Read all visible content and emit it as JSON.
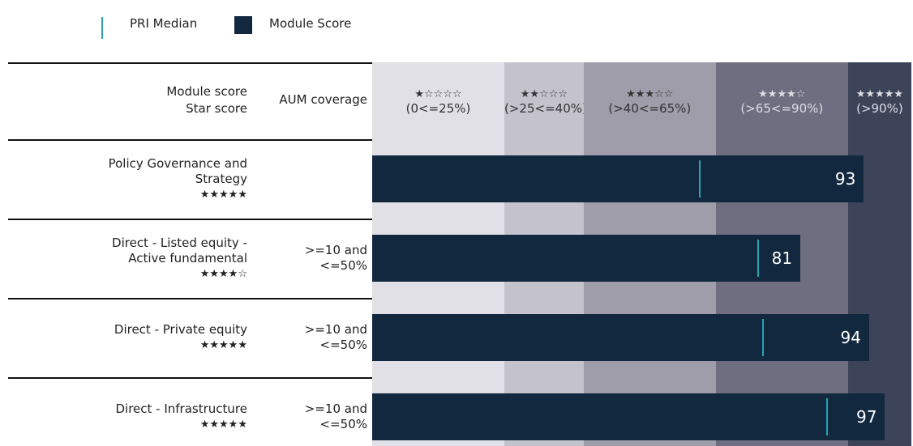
{
  "chart_data": {
    "type": "bar",
    "orientation": "horizontal",
    "xlim": [
      0,
      102
    ],
    "header": {
      "score_label": [
        "Module score",
        "Star score"
      ],
      "coverage_label": "AUM coverage"
    },
    "bands": [
      {
        "stars": "★☆☆☆☆",
        "label": "(0<=25%)",
        "from": 0,
        "to": 25,
        "color": "#e1e0e6",
        "text_color": "#333333"
      },
      {
        "stars": "★★☆☆☆",
        "label": "(>25<=40%)",
        "from": 25,
        "to": 40,
        "color": "#c4c3cb",
        "text_color": "#333333"
      },
      {
        "stars": "★★★☆☆",
        "label": "(>40<=65%)",
        "from": 40,
        "to": 65,
        "color": "#9e9da9",
        "text_color": "#333333"
      },
      {
        "stars": "★★★★☆",
        "label": "(>65<=90%)",
        "from": 65,
        "to": 90,
        "color": "#6f6e80",
        "text_color": "#dddde3"
      },
      {
        "stars": "★★★★★",
        "label": "(>90%)",
        "from": 90,
        "to": 102,
        "color": "#3d4459",
        "text_color": "#dddde3"
      }
    ],
    "categories": [
      "Policy Governance and Strategy",
      "Direct - Listed equity - Active fundamental",
      "Direct - Private equity",
      "Direct - Infrastructure"
    ],
    "stars": [
      "★★★★★",
      "★★★★☆",
      "★★★★★",
      "★★★★★"
    ],
    "coverage": [
      null,
      [
        ">=10 and",
        "<=50%"
      ],
      [
        ">=10 and",
        "<=50%"
      ],
      [
        ">=10 and",
        "<=50%"
      ]
    ],
    "series": [
      {
        "name": "PRI Median",
        "color": "#2aa3b3",
        "values": [
          62,
          73,
          74,
          86
        ]
      },
      {
        "name": "Module Score",
        "color": "#12283f",
        "values": [
          93,
          81,
          94,
          97
        ]
      }
    ]
  }
}
